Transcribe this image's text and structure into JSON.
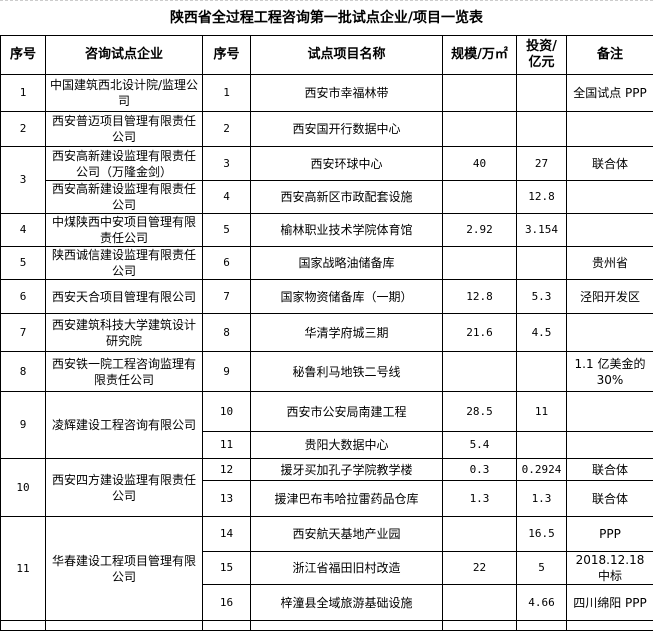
{
  "title": "陕西省全过程工程咨询第一批试点企业/项目一览表",
  "headers": {
    "no": "序号",
    "company": "咨询试点企业",
    "proj_no": "序号",
    "project": "试点项目名称",
    "scale": "规模/万㎡",
    "invest": "投资/亿元",
    "note": "备注"
  },
  "groups": [
    {
      "no": "1",
      "companies": [
        {
          "name": "中国建筑西北设计院/监理公司",
          "projects": [
            {
              "no": "1",
              "name": "西安市幸福林带",
              "scale": "",
              "invest": "",
              "note": "全国试点 PPP"
            }
          ]
        }
      ]
    },
    {
      "no": "2",
      "companies": [
        {
          "name": "西安普迈项目管理有限责任公司",
          "projects": [
            {
              "no": "2",
              "name": "西安国开行数据中心",
              "scale": "",
              "invest": "",
              "note": ""
            }
          ]
        }
      ]
    },
    {
      "no": "3",
      "companies": [
        {
          "name": "西安高新建设监理有限责任公司（万隆金剑）",
          "projects": [
            {
              "no": "3",
              "name": "西安环球中心",
              "scale": "40",
              "invest": "27",
              "note": "联合体"
            }
          ]
        },
        {
          "name": "西安高新建设监理有限责任公司",
          "projects": [
            {
              "no": "4",
              "name": "西安高新区市政配套设施",
              "scale": "",
              "invest": "12.8",
              "note": ""
            }
          ]
        }
      ]
    },
    {
      "no": "4",
      "companies": [
        {
          "name": "中煤陕西中安项目管理有限责任公司",
          "projects": [
            {
              "no": "5",
              "name": "榆林职业技术学院体育馆",
              "scale": "2.92",
              "invest": "3.154",
              "note": ""
            }
          ]
        }
      ]
    },
    {
      "no": "5",
      "companies": [
        {
          "name": "陕西诚信建设监理有限责任公司",
          "projects": [
            {
              "no": "6",
              "name": "国家战略油储备库",
              "scale": "",
              "invest": "",
              "note": "贵州省"
            }
          ]
        }
      ]
    },
    {
      "no": "6",
      "companies": [
        {
          "name": "西安天合项目管理有限公司",
          "projects": [
            {
              "no": "7",
              "name": "国家物资储备库（一期）",
              "scale": "12.8",
              "invest": "5.3",
              "note": "泾阳开发区"
            }
          ]
        }
      ]
    },
    {
      "no": "7",
      "companies": [
        {
          "name": "西安建筑科技大学建筑设计研究院",
          "projects": [
            {
              "no": "8",
              "name": "华清学府城三期",
              "scale": "21.6",
              "invest": "4.5",
              "note": ""
            }
          ]
        }
      ]
    },
    {
      "no": "8",
      "companies": [
        {
          "name": "西安铁一院工程咨询监理有限责任公司",
          "projects": [
            {
              "no": "9",
              "name": "秘鲁利马地铁二号线",
              "scale": "",
              "invest": "",
              "note": "1.1 亿美金的30%"
            }
          ]
        }
      ]
    },
    {
      "no": "9",
      "companies": [
        {
          "name": "凌辉建设工程咨询有限公司",
          "projects": [
            {
              "no": "10",
              "name": "西安市公安局南建工程",
              "scale": "28.5",
              "invest": "11",
              "note": ""
            },
            {
              "no": "11",
              "name": "贵阳大数据中心",
              "scale": "5.4",
              "invest": "",
              "note": ""
            }
          ]
        }
      ]
    },
    {
      "no": "10",
      "companies": [
        {
          "name": "西安四方建设监理有限责任公司",
          "projects": [
            {
              "no": "12",
              "name": "援牙买加孔子学院教学楼",
              "scale": "0.3",
              "invest": "0.2924",
              "note": "联合体"
            },
            {
              "no": "13",
              "name": "援津巴布韦哈拉雷药品仓库",
              "scale": "1.3",
              "invest": "1.3",
              "note": "联合体"
            }
          ]
        }
      ]
    },
    {
      "no": "11",
      "companies": [
        {
          "name": "华春建设工程项目管理有限公司",
          "projects": [
            {
              "no": "14",
              "name": "西安航天基地产业园",
              "scale": "",
              "invest": "16.5",
              "note": "PPP"
            },
            {
              "no": "15",
              "name": "浙江省福田旧村改造",
              "scale": "22",
              "invest": "5",
              "note": "2018.12.18 中标"
            },
            {
              "no": "16",
              "name": "梓潼县全域旅游基础设施",
              "scale": "",
              "invest": "4.66",
              "note": "四川绵阳 PPP"
            }
          ]
        }
      ]
    }
  ]
}
